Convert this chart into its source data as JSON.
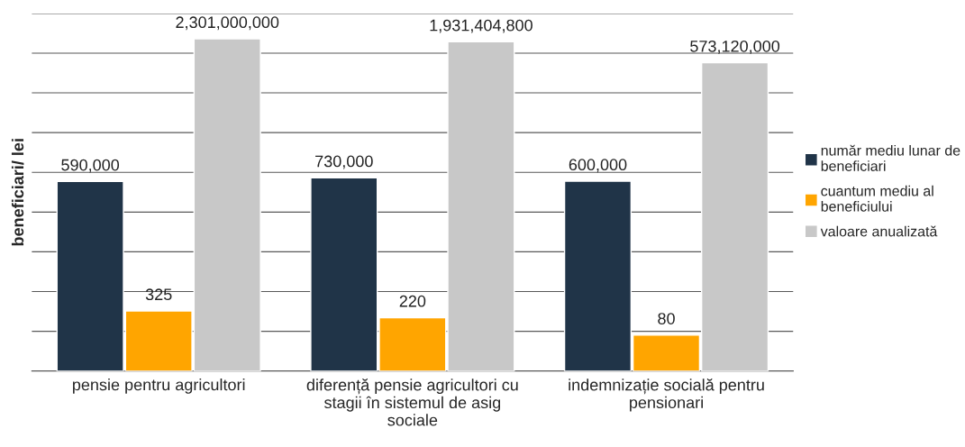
{
  "chart_data": {
    "type": "bar",
    "categories": [
      "pensie pentru agricultori",
      "diferență pensie agricultori cu stagii în sistemul de asig sociale",
      "indemnizație socială pentru pensionari"
    ],
    "series": [
      {
        "name": "număr mediu lunar de beneficiari",
        "color": "#203448",
        "values": [
          590000,
          730000,
          600000
        ],
        "value_labels": [
          "590,000",
          "730,000",
          "600,000"
        ]
      },
      {
        "name": "cuantum mediu al beneficiului",
        "color": "#ffa500",
        "values": [
          325,
          220,
          80
        ],
        "value_labels": [
          "325",
          "220",
          "80"
        ]
      },
      {
        "name": "valoare anualizată",
        "color": "#c8c8c8",
        "values": [
          2301000000,
          1931404800,
          573120000
        ],
        "value_labels": [
          "2,301,000,000",
          "1,931,404,800",
          "573,120,000"
        ]
      }
    ],
    "ylabel": "beneficiari/ lei",
    "log": true,
    "ylim": [
      10,
      10000000000
    ],
    "yticks": [
      {
        "value": 10,
        "label": null
      },
      {
        "value": 100,
        "label": null
      },
      {
        "value": 1000,
        "label": null
      },
      {
        "value": 10000,
        "label": null
      },
      {
        "value": 100000,
        "label": null
      },
      {
        "value": 1000000,
        "label": null
      },
      {
        "value": 10000000,
        "label": null
      },
      {
        "value": 100000000,
        "label": null
      },
      {
        "value": 1000000000,
        "label": null
      },
      {
        "value": 10000000000,
        "label": null
      }
    ],
    "tick_labels": "x",
    "grid": "y",
    "legend": "right"
  }
}
